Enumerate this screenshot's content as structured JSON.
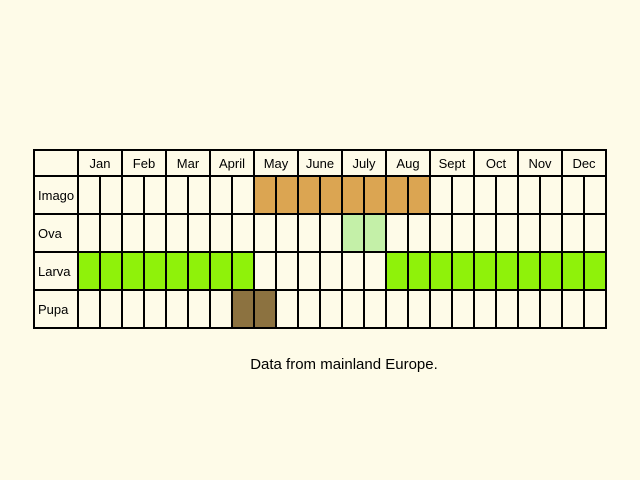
{
  "chart_data": {
    "type": "table",
    "months": [
      "Jan",
      "Feb",
      "Mar",
      "April",
      "May",
      "June",
      "July",
      "Aug",
      "Sept",
      "Oct",
      "Nov",
      "Dec"
    ],
    "halves_per_month": 2,
    "stages": [
      {
        "name": "Imago",
        "color": "#dba552",
        "active_halves": [
          [
            8,
            15
          ]
        ]
      },
      {
        "name": "Ova",
        "color": "#c4f0a8",
        "active_halves": [
          [
            12,
            13
          ]
        ]
      },
      {
        "name": "Larva",
        "color": "#8ff20a",
        "active_halves": [
          [
            0,
            7
          ],
          [
            14,
            23
          ]
        ]
      },
      {
        "name": "Pupa",
        "color": "#8c7240",
        "active_halves": [
          [
            7,
            8
          ]
        ]
      }
    ]
  },
  "caption": "Data from mainland Europe."
}
